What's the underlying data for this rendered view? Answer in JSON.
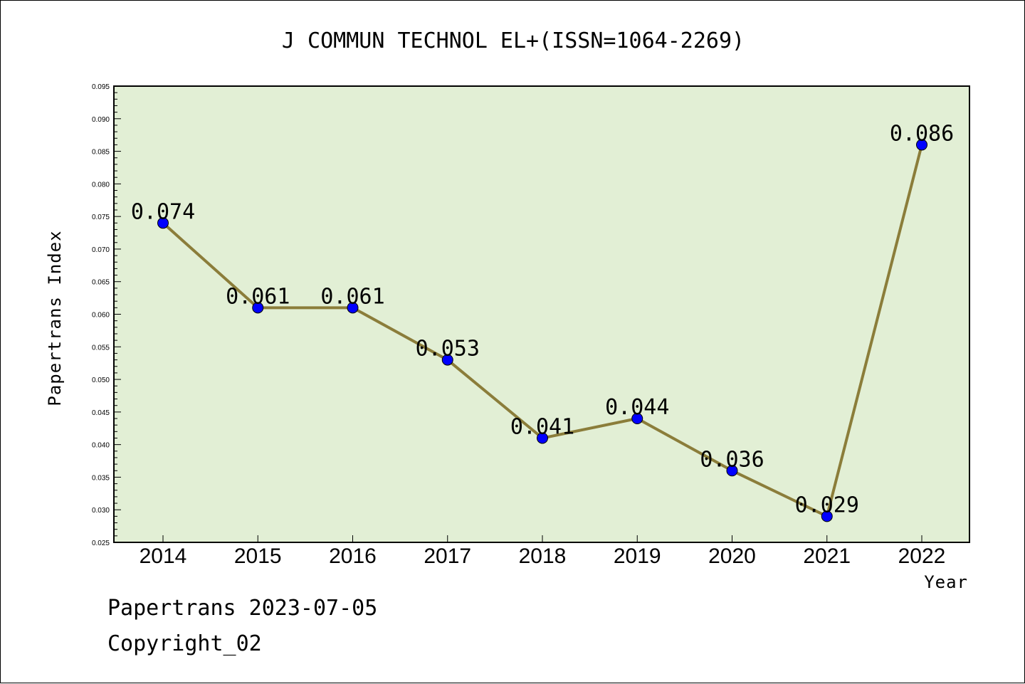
{
  "chart_data": {
    "type": "line",
    "title": "J COMMUN TECHNOL EL+(ISSN=1064-2269)",
    "xlabel": "Year",
    "ylabel": "Papertrans Index",
    "categories": [
      "2014",
      "2015",
      "2016",
      "2017",
      "2018",
      "2019",
      "2020",
      "2021",
      "2022"
    ],
    "values": [
      0.074,
      0.061,
      0.061,
      0.053,
      0.041,
      0.044,
      0.036,
      0.029,
      0.086
    ],
    "data_labels": [
      "0.074",
      "0.061",
      "0.061",
      "0.053",
      "0.041",
      "0.044",
      "0.036",
      "0.029",
      "0.086"
    ],
    "ylim": [
      0.025,
      0.095
    ],
    "yticks": [
      "0.025",
      "0.030",
      "0.035",
      "0.040",
      "0.045",
      "0.050",
      "0.055",
      "0.060",
      "0.065",
      "0.070",
      "0.075",
      "0.080",
      "0.085",
      "0.090",
      "0.095"
    ],
    "grid": false,
    "colors": {
      "plot_background": "#e2efd5",
      "line": "#8b7d3a",
      "marker": "#0000ff"
    }
  },
  "footer": {
    "line1": "Papertrans 2023-07-05",
    "line2": "Copyright_02"
  }
}
